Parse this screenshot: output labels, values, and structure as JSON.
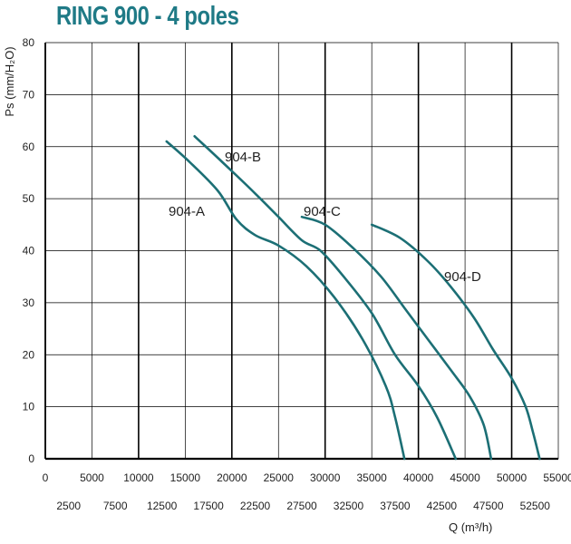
{
  "chart_data": {
    "type": "line",
    "title": "RING 900 - 4 poles",
    "xlabel": "Q (m³/h)",
    "ylabel": "Ps (mm/H₂O)",
    "xlim": [
      0,
      55000
    ],
    "ylim": [
      0,
      80
    ],
    "x_ticks_upper": [
      "0",
      "5000",
      "10000",
      "15000",
      "20000",
      "25000",
      "30000",
      "35000",
      "40000",
      "45000",
      "50000",
      "55000"
    ],
    "x_ticks_lower": [
      "2500",
      "7500",
      "12500",
      "17500",
      "22500",
      "27500",
      "32500",
      "37500",
      "42500",
      "47500",
      "52500"
    ],
    "y_ticks": [
      "0",
      "10",
      "20",
      "30",
      "40",
      "50",
      "60",
      "70",
      "80"
    ],
    "grid": true,
    "series": [
      {
        "name": "904-A",
        "points": [
          [
            13000,
            61
          ],
          [
            15500,
            57
          ],
          [
            18500,
            51.5
          ],
          [
            20500,
            46
          ],
          [
            22500,
            43
          ],
          [
            25000,
            41
          ],
          [
            28000,
            37
          ],
          [
            31000,
            31
          ],
          [
            34000,
            23
          ],
          [
            36500,
            14
          ],
          [
            37500,
            8
          ],
          [
            38500,
            0
          ]
        ]
      },
      {
        "name": "904-B",
        "points": [
          [
            16000,
            62
          ],
          [
            19000,
            57
          ],
          [
            22500,
            51
          ],
          [
            25000,
            46.5
          ],
          [
            27500,
            42
          ],
          [
            29500,
            40
          ],
          [
            32000,
            35
          ],
          [
            35000,
            28
          ],
          [
            37500,
            20
          ],
          [
            40000,
            14
          ],
          [
            42000,
            8
          ],
          [
            44000,
            0
          ]
        ]
      },
      {
        "name": "904-C",
        "points": [
          [
            27500,
            46.5
          ],
          [
            30000,
            45
          ],
          [
            33000,
            40.5
          ],
          [
            36000,
            35
          ],
          [
            38500,
            29
          ],
          [
            41000,
            23
          ],
          [
            43500,
            17
          ],
          [
            45500,
            12
          ],
          [
            47000,
            6.5
          ],
          [
            47800,
            0
          ]
        ]
      },
      {
        "name": "904-D",
        "points": [
          [
            35000,
            45
          ],
          [
            38000,
            42.5
          ],
          [
            41000,
            38
          ],
          [
            43500,
            33
          ],
          [
            46000,
            27
          ],
          [
            48000,
            21
          ],
          [
            50000,
            15.5
          ],
          [
            51500,
            10
          ],
          [
            52300,
            5
          ],
          [
            53000,
            0
          ]
        ]
      }
    ],
    "labels": {
      "a": "904-A",
      "b": "904-B",
      "c": "904-C",
      "d": "904-D"
    },
    "colors": {
      "curve": "#1c6f75",
      "grid": "#000000",
      "title": "#1f7a86"
    }
  }
}
